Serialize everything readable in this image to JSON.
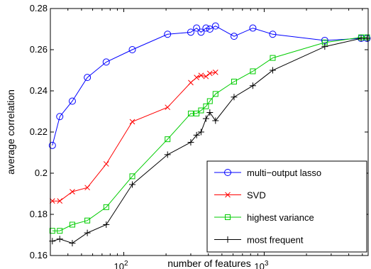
{
  "chart_data": {
    "type": "line",
    "xlabel": "number of features",
    "ylabel": "average correlation",
    "xscale": "log",
    "xlim": [
      30,
      5500
    ],
    "ylim": [
      0.16,
      0.28
    ],
    "grid": false,
    "legend_position": "bottom-right",
    "y_ticks": [
      0.16,
      0.18,
      0.2,
      0.22,
      0.24,
      0.26,
      0.28
    ],
    "y_tick_labels": [
      "0.16",
      "0.18",
      "0.2",
      "0.22",
      "0.24",
      "0.26",
      "0.28"
    ],
    "x_ticks": [
      100,
      1000
    ],
    "x_tick_labels": [
      {
        "base": "10",
        "exp": "2"
      },
      {
        "base": "10",
        "exp": "3"
      }
    ],
    "series": [
      {
        "name": "multi−output lasso",
        "color": "#0000ff",
        "marker": "circle",
        "points": [
          [
            31,
            0.2135
          ],
          [
            35,
            0.2275
          ],
          [
            43,
            0.235
          ],
          [
            55,
            0.2465
          ],
          [
            75,
            0.254
          ],
          [
            115,
            0.26
          ],
          [
            205,
            0.2675
          ],
          [
            300,
            0.2685
          ],
          [
            330,
            0.2705
          ],
          [
            355,
            0.2685
          ],
          [
            385,
            0.2705
          ],
          [
            410,
            0.27
          ],
          [
            450,
            0.2715
          ],
          [
            610,
            0.2665
          ],
          [
            830,
            0.2705
          ],
          [
            1150,
            0.2675
          ],
          [
            2700,
            0.2645
          ],
          [
            4900,
            0.2655
          ],
          [
            5400,
            0.2655
          ]
        ]
      },
      {
        "name": "SVD",
        "color": "#ff0000",
        "marker": "x",
        "points": [
          [
            31,
            0.1865
          ],
          [
            35,
            0.1865
          ],
          [
            43,
            0.191
          ],
          [
            55,
            0.193
          ],
          [
            75,
            0.2045
          ],
          [
            115,
            0.225
          ],
          [
            205,
            0.232
          ],
          [
            300,
            0.244
          ],
          [
            330,
            0.2465
          ],
          [
            355,
            0.2475
          ],
          [
            385,
            0.247
          ],
          [
            410,
            0.2485
          ],
          [
            450,
            0.249
          ]
        ]
      },
      {
        "name": "highest variance",
        "color": "#00cc00",
        "marker": "square",
        "points": [
          [
            31,
            0.172
          ],
          [
            35,
            0.172
          ],
          [
            43,
            0.175
          ],
          [
            55,
            0.177
          ],
          [
            75,
            0.1835
          ],
          [
            115,
            0.1985
          ],
          [
            205,
            0.2165
          ],
          [
            300,
            0.229
          ],
          [
            330,
            0.229
          ],
          [
            355,
            0.2305
          ],
          [
            385,
            0.2325
          ],
          [
            410,
            0.235
          ],
          [
            450,
            0.2385
          ],
          [
            610,
            0.2445
          ],
          [
            830,
            0.2495
          ],
          [
            1150,
            0.256
          ],
          [
            2700,
            0.2635
          ],
          [
            4900,
            0.266
          ],
          [
            5400,
            0.266
          ]
        ]
      },
      {
        "name": "most frequent",
        "color": "#000000",
        "marker": "plus",
        "points": [
          [
            31,
            0.167
          ],
          [
            35,
            0.168
          ],
          [
            43,
            0.166
          ],
          [
            55,
            0.171
          ],
          [
            75,
            0.175
          ],
          [
            115,
            0.1945
          ],
          [
            205,
            0.209
          ],
          [
            300,
            0.215
          ],
          [
            330,
            0.2185
          ],
          [
            355,
            0.22
          ],
          [
            385,
            0.2265
          ],
          [
            410,
            0.2295
          ],
          [
            450,
            0.2255
          ],
          [
            610,
            0.237
          ],
          [
            830,
            0.2425
          ],
          [
            1150,
            0.25
          ],
          [
            2700,
            0.2615
          ],
          [
            4900,
            0.2655
          ],
          [
            5400,
            0.2655
          ]
        ]
      }
    ]
  }
}
